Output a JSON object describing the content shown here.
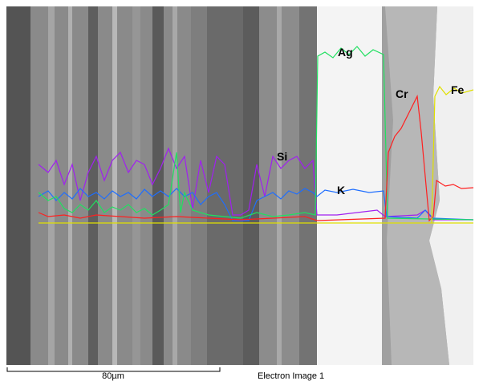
{
  "labels": {
    "ag": "Ag",
    "cr": "Cr",
    "fe": "Fe",
    "si": "Si",
    "k": "K"
  },
  "scale_bar": "80µm",
  "caption": "Electron Image 1"
}
